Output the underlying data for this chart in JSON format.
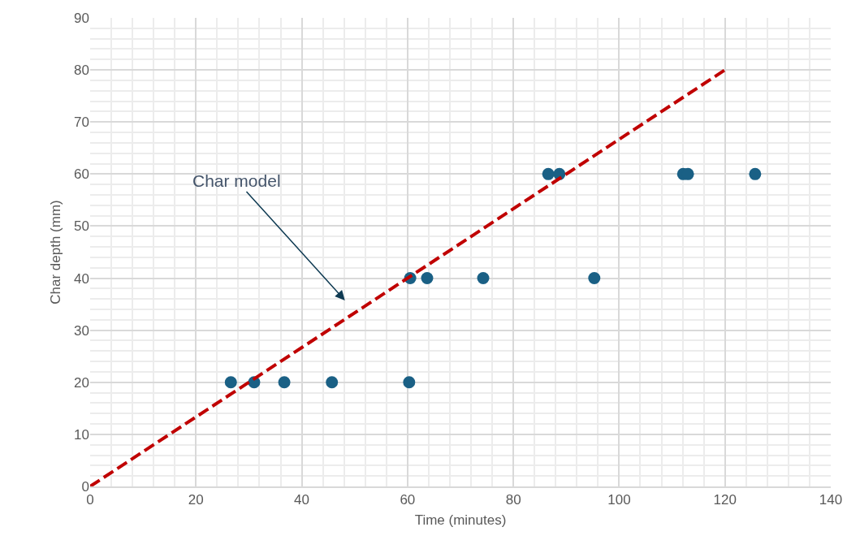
{
  "chart_data": {
    "type": "scatter",
    "xlabel": "Time (minutes)",
    "ylabel": "Char depth (mm)",
    "xlim": [
      0,
      140
    ],
    "xticks": [
      0,
      20,
      40,
      60,
      80,
      100,
      120,
      140
    ],
    "ylim": [
      0,
      90
    ],
    "yticks": [
      0,
      10,
      20,
      30,
      40,
      50,
      60,
      70,
      80,
      90
    ],
    "grid": true,
    "marker": "circle",
    "series": [
      {
        "color": "#1a6085",
        "x": [
          26.6,
          31.0,
          36.7,
          45.7,
          60.3,
          60.5,
          63.7,
          74.3,
          95.3,
          86.6,
          88.7,
          112.1,
          113.0,
          125.7
        ],
        "values": [
          20,
          20,
          20,
          20,
          20,
          40,
          40,
          40,
          40,
          60,
          60,
          60,
          60,
          60
        ]
      },
      {
        "type": "line",
        "color": "#c00000",
        "line_style": "dashed",
        "marker": "none",
        "x": [
          0,
          120
        ],
        "values": [
          0,
          80
        ]
      }
    ],
    "annotations": [
      "Char model"
    ]
  }
}
